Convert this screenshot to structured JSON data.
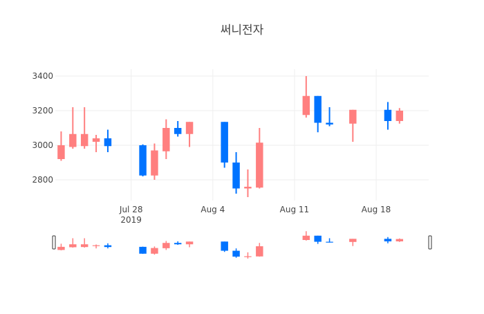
{
  "title": "써니전자",
  "chart_data": {
    "type": "candlestick",
    "title": "써니전자",
    "xlabel": "",
    "ylabel": "",
    "grid": true,
    "legend": "none",
    "rangeslider": true,
    "colors": {
      "increasing": "#ff7f7f",
      "decreasing": "#0073ff"
    },
    "xlim": [
      "2019-07-22",
      "2019-08-22"
    ],
    "ylim": [
      2680,
      3440
    ],
    "y_ticks": [
      2800,
      3000,
      3200,
      3400
    ],
    "x_ticks": [
      {
        "date": "2019-07-28",
        "label": "Jul 28",
        "sublabel": "2019"
      },
      {
        "date": "2019-08-04",
        "label": "Aug 4",
        "sublabel": ""
      },
      {
        "date": "2019-08-11",
        "label": "Aug 11",
        "sublabel": ""
      },
      {
        "date": "2019-08-18",
        "label": "Aug 18",
        "sublabel": ""
      }
    ],
    "candles": [
      {
        "date": "2019-07-22",
        "open": 2920,
        "high": 3080,
        "low": 2910,
        "close": 3000
      },
      {
        "date": "2019-07-23",
        "open": 2990,
        "high": 3220,
        "low": 2980,
        "close": 3065
      },
      {
        "date": "2019-07-24",
        "open": 2995,
        "high": 3220,
        "low": 2980,
        "close": 3065
      },
      {
        "date": "2019-07-25",
        "open": 3020,
        "high": 3060,
        "low": 2960,
        "close": 3040
      },
      {
        "date": "2019-07-26",
        "open": 3040,
        "high": 3090,
        "low": 2960,
        "close": 2995
      },
      {
        "date": "2019-07-29",
        "open": 3000,
        "high": 3005,
        "low": 2820,
        "close": 2825
      },
      {
        "date": "2019-07-30",
        "open": 2825,
        "high": 3010,
        "low": 2800,
        "close": 2970
      },
      {
        "date": "2019-07-31",
        "open": 2965,
        "high": 3150,
        "low": 2920,
        "close": 3100
      },
      {
        "date": "2019-08-01",
        "open": 3100,
        "high": 3140,
        "low": 3050,
        "close": 3065
      },
      {
        "date": "2019-08-02",
        "open": 3065,
        "high": 3135,
        "low": 2990,
        "close": 3135
      },
      {
        "date": "2019-08-05",
        "open": 3135,
        "high": 3135,
        "low": 2870,
        "close": 2900
      },
      {
        "date": "2019-08-06",
        "open": 2900,
        "high": 2960,
        "low": 2720,
        "close": 2750
      },
      {
        "date": "2019-08-07",
        "open": 2750,
        "high": 2860,
        "low": 2700,
        "close": 2760
      },
      {
        "date": "2019-08-08",
        "open": 2755,
        "high": 3100,
        "low": 2750,
        "close": 3015
      },
      {
        "date": "2019-08-12",
        "open": 3175,
        "high": 3400,
        "low": 3160,
        "close": 3285
      },
      {
        "date": "2019-08-13",
        "open": 3285,
        "high": 3285,
        "low": 3075,
        "close": 3130
      },
      {
        "date": "2019-08-14",
        "open": 3130,
        "high": 3220,
        "low": 3110,
        "close": 3120
      },
      {
        "date": "2019-08-16",
        "open": 3125,
        "high": 3205,
        "low": 3020,
        "close": 3205
      },
      {
        "date": "2019-08-19",
        "open": 3205,
        "high": 3250,
        "low": 3090,
        "close": 3140
      },
      {
        "date": "2019-08-20",
        "open": 3140,
        "high": 3215,
        "low": 3125,
        "close": 3200
      }
    ]
  }
}
